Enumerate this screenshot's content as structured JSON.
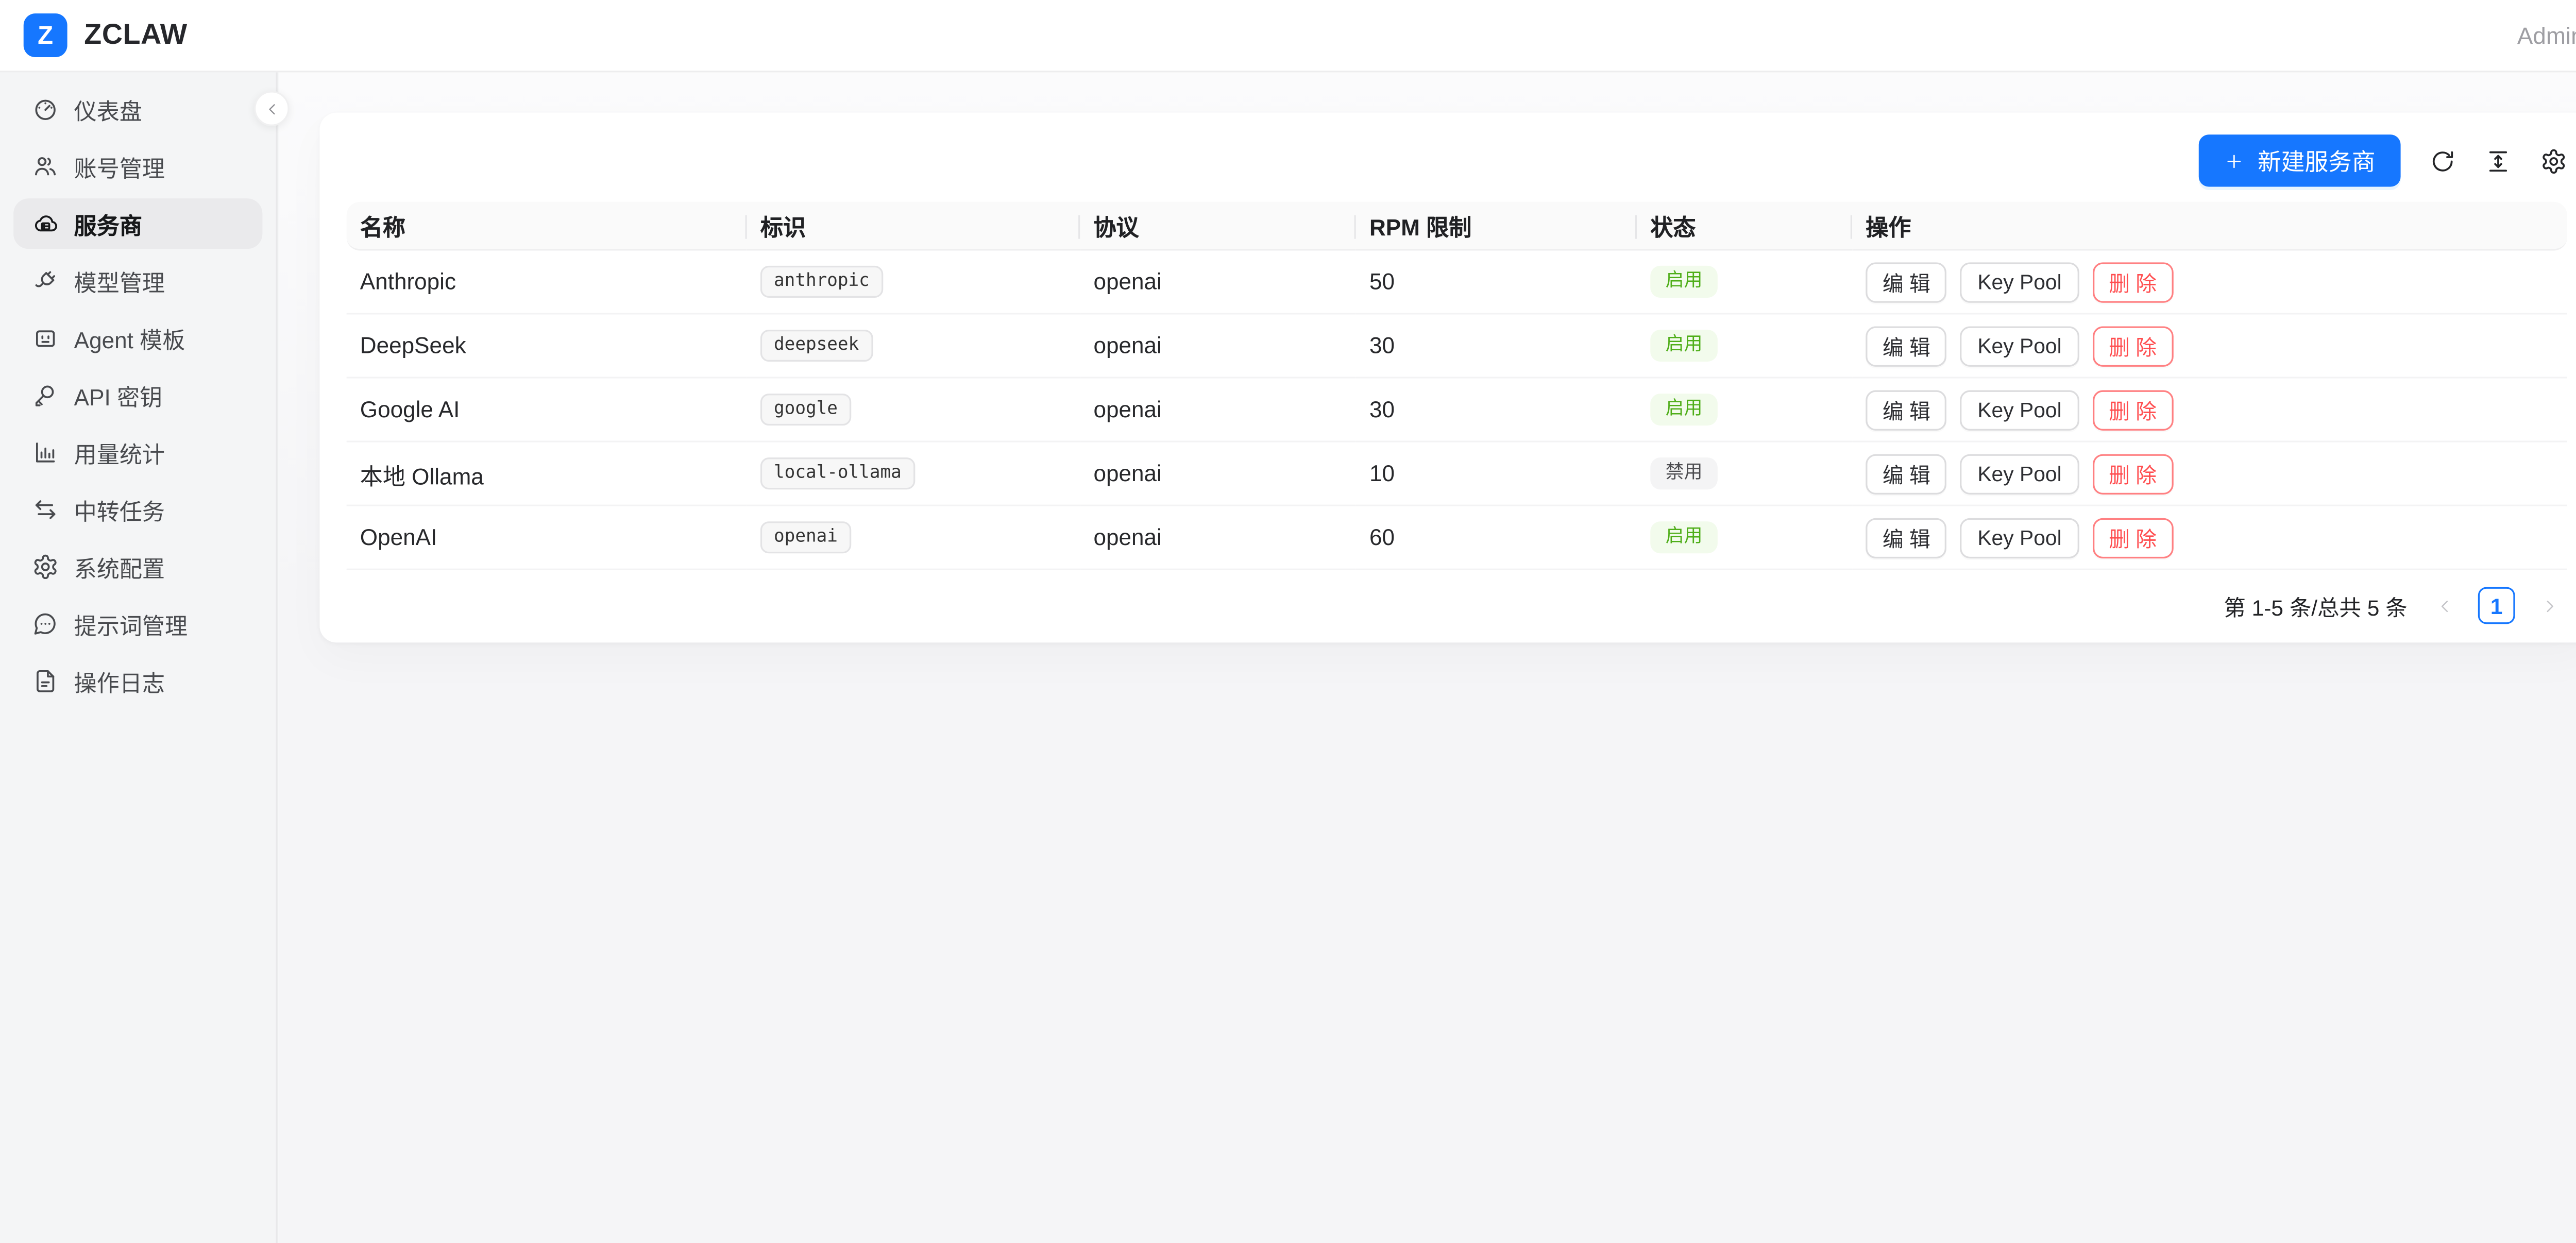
{
  "header": {
    "logo_letter": "Z",
    "brand": "ZCLAW",
    "user_label": "Admin"
  },
  "sidebar": {
    "items": [
      {
        "id": "dashboard",
        "label": "仪表盘",
        "icon": "gauge-icon",
        "active": false
      },
      {
        "id": "accounts",
        "label": "账号管理",
        "icon": "users-icon",
        "active": false
      },
      {
        "id": "providers",
        "label": "服务商",
        "icon": "cloud-server-icon",
        "active": true
      },
      {
        "id": "models",
        "label": "模型管理",
        "icon": "plug-icon",
        "active": false
      },
      {
        "id": "agent-templates",
        "label": "Agent 模板",
        "icon": "bot-icon",
        "active": false
      },
      {
        "id": "api-keys",
        "label": "API 密钥",
        "icon": "key-icon",
        "active": false
      },
      {
        "id": "usage-stats",
        "label": "用量统计",
        "icon": "bar-chart-icon",
        "active": false
      },
      {
        "id": "relay-tasks",
        "label": "中转任务",
        "icon": "swap-arrows-icon",
        "active": false
      },
      {
        "id": "system-config",
        "label": "系统配置",
        "icon": "gear-icon",
        "active": false
      },
      {
        "id": "prompts",
        "label": "提示词管理",
        "icon": "message-dots-icon",
        "active": false
      },
      {
        "id": "op-logs",
        "label": "操作日志",
        "icon": "file-text-icon",
        "active": false
      }
    ]
  },
  "toolbar": {
    "create_button": "新建服务商",
    "icons": [
      {
        "name": "reload-icon"
      },
      {
        "name": "column-height-icon"
      },
      {
        "name": "gear-icon"
      }
    ]
  },
  "table": {
    "columns": [
      "名称",
      "标识",
      "协议",
      "RPM 限制",
      "状态",
      "操作"
    ],
    "actions": [
      "编 辑",
      "Key Pool",
      "删 除"
    ],
    "rows": [
      {
        "name": "Anthropic",
        "slug": "anthropic",
        "protocol": "openai",
        "rpm": "50",
        "status": "启用",
        "status_type": "enabled"
      },
      {
        "name": "DeepSeek",
        "slug": "deepseek",
        "protocol": "openai",
        "rpm": "30",
        "status": "启用",
        "status_type": "enabled"
      },
      {
        "name": "Google AI",
        "slug": "google",
        "protocol": "openai",
        "rpm": "30",
        "status": "启用",
        "status_type": "enabled"
      },
      {
        "name": "本地 Ollama",
        "slug": "local-ollama",
        "protocol": "openai",
        "rpm": "10",
        "status": "禁用",
        "status_type": "disabled"
      },
      {
        "name": "OpenAI",
        "slug": "openai",
        "protocol": "openai",
        "rpm": "60",
        "status": "启用",
        "status_type": "enabled"
      }
    ]
  },
  "pagination": {
    "total_text": "第 1-5 条/总共 5 条",
    "current_page": "1"
  },
  "colors": {
    "primary": "#1677ff",
    "success_text": "#4fae19",
    "success_bg": "#f2fbec",
    "danger": "#ff4d4f"
  }
}
